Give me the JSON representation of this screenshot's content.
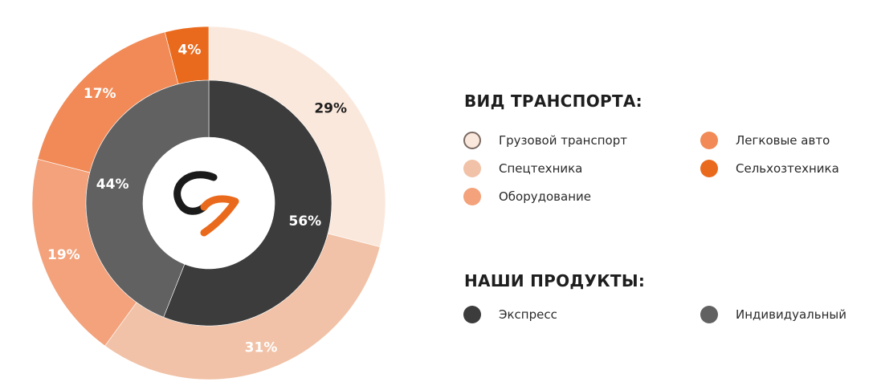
{
  "chart_data": {
    "type": "pie",
    "outer_ring": {
      "legend_title": "ВИД ТРАНСПОРТА:",
      "slices": [
        {
          "name": "Грузовой транспорт",
          "value": 29,
          "label": "29%",
          "color": "#fbe8dc",
          "border": "#7a6a62"
        },
        {
          "name": "Спецтехника",
          "value": 31,
          "label": "31%",
          "color": "#f1c2a7"
        },
        {
          "name": "Оборудование",
          "value": 19,
          "label": "19%",
          "color": "#f3a27b"
        },
        {
          "name": "Легковые авто",
          "value": 17,
          "label": "17%",
          "color": "#f18a56"
        },
        {
          "name": "Сельхозтехника",
          "value": 4,
          "label": "4%",
          "color": "#ea6a1d"
        }
      ]
    },
    "inner_ring": {
      "legend_title": "НАШИ ПРОДУКТЫ:",
      "slices": [
        {
          "name": "Экспресс",
          "value": 56,
          "label": "56%",
          "color": "#3c3c3c"
        },
        {
          "name": "Индивидуальный",
          "value": 44,
          "label": "44%",
          "color": "#616161"
        }
      ]
    }
  },
  "logo": {
    "name": "logo-icon",
    "dark": "#1a1a1a",
    "accent": "#ea6a1d"
  }
}
